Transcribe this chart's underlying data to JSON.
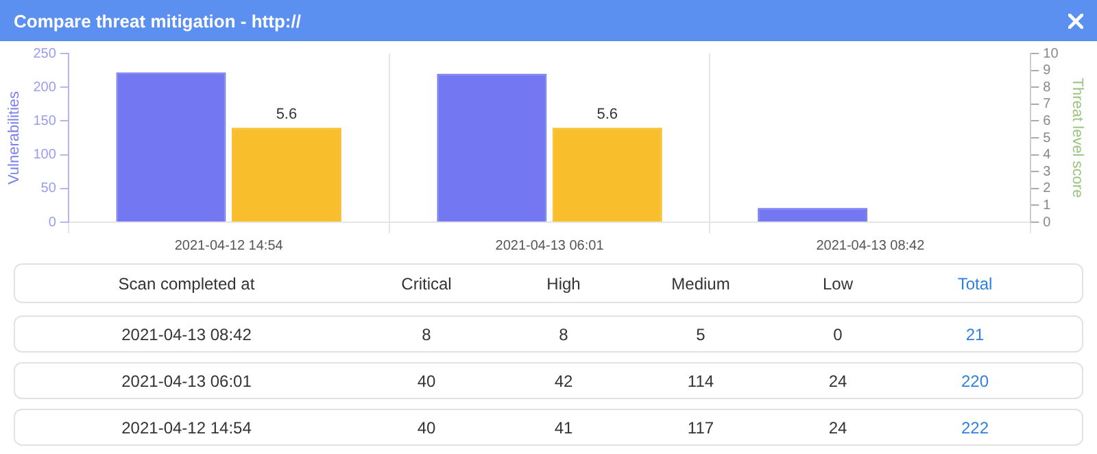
{
  "chart_data": [
    {
      "type": "bar",
      "title": "Compare threat mitigation - http://",
      "categories": [
        "2021-04-12 14:54",
        "2021-04-13 06:01",
        "2021-04-13 08:42"
      ],
      "series": [
        {
          "color": "#7378f2",
          "values": [
            222,
            220,
            21
          ]
        },
        {
          "color": "#f8be2c",
          "values": [
            5.6,
            5.6,
            null
          ],
          "axis": "y2",
          "value_labels": [
            "5.6",
            "5.6",
            null
          ]
        }
      ],
      "ylabel": "Vulnerabilities",
      "y2label": "Threat level score",
      "ylim": [
        0,
        250
      ],
      "yticks": [
        0,
        50,
        100,
        150,
        200,
        250
      ],
      "y2lim": [
        0,
        10
      ],
      "y2ticks": [
        0,
        1,
        2,
        3,
        4,
        5,
        6,
        7,
        8,
        9,
        10
      ],
      "grid": "x",
      "legend": false
    },
    {
      "type": "other",
      "xlabel": "Scan completed at",
      "categories": [
        "2021-04-13 08:42",
        "2021-04-13 06:01",
        "2021-04-12 14:54"
      ],
      "series": [
        {
          "name": "Critical",
          "color": "#333333",
          "values": [
            8,
            40,
            40
          ]
        },
        {
          "name": "High",
          "color": "#333333",
          "values": [
            8,
            42,
            41
          ]
        },
        {
          "name": "Medium",
          "color": "#333333",
          "values": [
            5,
            114,
            117
          ]
        },
        {
          "name": "Low",
          "color": "#333333",
          "values": [
            0,
            24,
            24
          ]
        },
        {
          "name": "Total",
          "color": "#2f7fe0",
          "values": [
            21,
            220,
            222
          ]
        }
      ],
      "data_labels": true
    }
  ]
}
